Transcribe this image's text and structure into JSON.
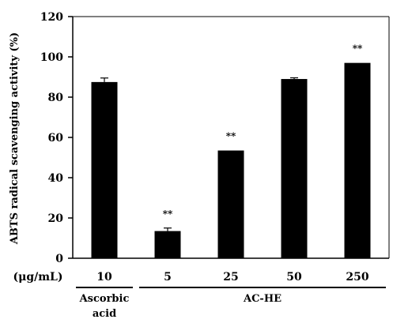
{
  "chart_data": {
    "type": "bar",
    "ylabel": "ABTS radical scavenging activity (%)",
    "unit_label": "(μg/mL)",
    "categories": [
      "10",
      "5",
      "25",
      "50",
      "250"
    ],
    "values": [
      87.5,
      13.5,
      53.5,
      89,
      97
    ],
    "errors": [
      2,
      1.5,
      0,
      0.6,
      0
    ],
    "significance": [
      "",
      "**",
      "**",
      "",
      "**"
    ],
    "ylim": [
      0,
      120
    ],
    "yticks": [
      0,
      20,
      40,
      60,
      80,
      100,
      120
    ],
    "groups": [
      {
        "label": "Ascorbic acid",
        "lines": [
          "Ascorbic",
          "acid"
        ],
        "categories": [
          0
        ]
      },
      {
        "label": "AC-HE",
        "lines": [
          "AC-HE"
        ],
        "categories": [
          1,
          2,
          3,
          4
        ]
      }
    ],
    "bar_color": "#000000",
    "grid": false
  }
}
